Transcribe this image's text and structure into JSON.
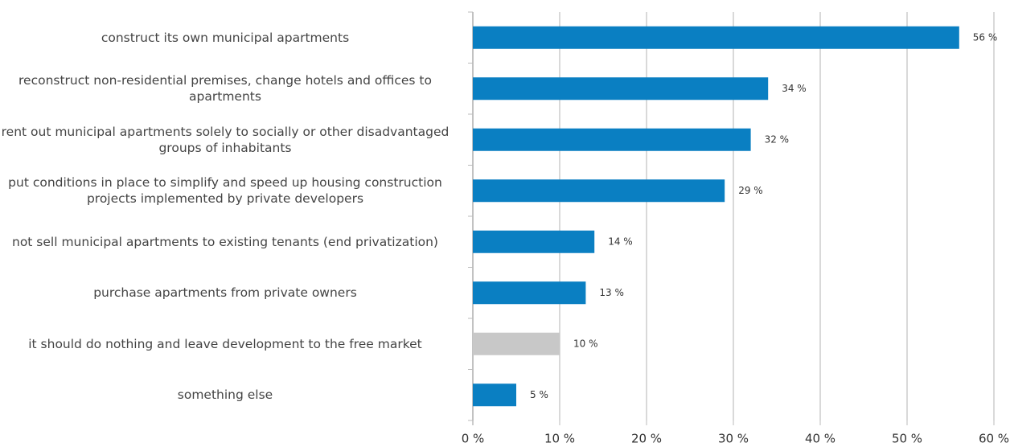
{
  "chart_data": {
    "type": "hbar",
    "categories": [
      "construct its own municipal apartments",
      "reconstruct non-residential premises, change hotels and offices to apartments",
      "rent out municipal apartments solely to socially or other disadvantaged groups of inhabitants",
      "put conditions in place to simplify and speed up housing construction projects implemented by private developers",
      "not sell municipal apartments to existing tenants (end privatization)",
      "purchase apartments from private owners",
      "it should do nothing and leave development to the free market",
      "something else"
    ],
    "values": [
      56,
      34,
      32,
      29,
      14,
      13,
      10,
      5
    ],
    "value_labels": [
      "56 %",
      "34 %",
      "32 %",
      "29 %",
      "14 %",
      "13 %",
      "10 %",
      "5 %"
    ],
    "colors": [
      "#0a7fc2",
      "#0a7fc2",
      "#0a7fc2",
      "#0a7fc2",
      "#0a7fc2",
      "#0a7fc2",
      "#c8c8c8",
      "#0a7fc2"
    ],
    "xlim": [
      0,
      60
    ],
    "xticks": [
      {
        "value": 0,
        "label": "0 %"
      },
      {
        "value": 10,
        "label": "10 %"
      },
      {
        "value": 20,
        "label": "20 %"
      },
      {
        "value": 30,
        "label": "30 %"
      },
      {
        "value": 40,
        "label": "40 %"
      },
      {
        "value": 50,
        "label": "50 %"
      },
      {
        "value": 60,
        "label": "60 %"
      }
    ],
    "grid": true
  }
}
